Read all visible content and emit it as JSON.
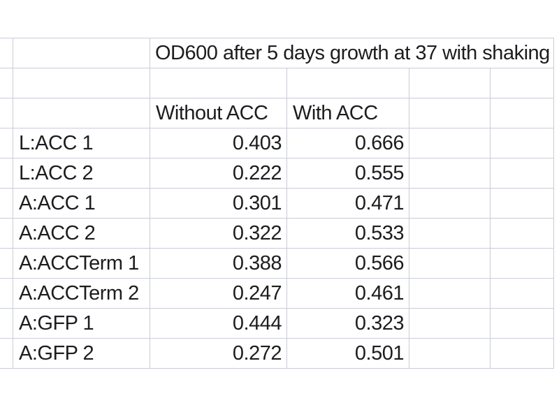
{
  "colors": {
    "background": "#ffffff",
    "gridline": "#c9cdd7",
    "text": "#1d1d1f"
  },
  "sheet": {
    "title": "OD600 after 5 days growth at 37 with shaking",
    "col_headers": {
      "without": "Without ACC",
      "with": "With ACC"
    },
    "rows": [
      {
        "label": "L:ACC 1",
        "without": "0.403",
        "with": "0.666"
      },
      {
        "label": "L:ACC 2",
        "without": "0.222",
        "with": "0.555"
      },
      {
        "label": "A:ACC 1",
        "without": "0.301",
        "with": "0.471"
      },
      {
        "label": "A:ACC 2",
        "without": "0.322",
        "with": "0.533"
      },
      {
        "label": "A:ACCTerm 1",
        "without": "0.388",
        "with": "0.566"
      },
      {
        "label": "A:ACCTerm 2",
        "without": "0.247",
        "with": "0.461"
      },
      {
        "label": "A:GFP 1",
        "without": "0.444",
        "with": "0.323"
      },
      {
        "label": "A:GFP 2",
        "without": "0.272",
        "with": "0.501"
      }
    ]
  }
}
